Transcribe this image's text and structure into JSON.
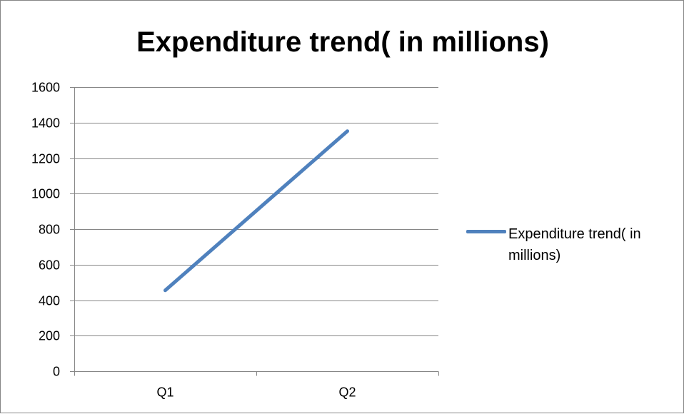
{
  "chart_data": {
    "type": "line",
    "title": "Expenditure trend( in millions)",
    "xlabel": "",
    "ylabel": "",
    "categories": [
      "Q1",
      "Q2"
    ],
    "series": [
      {
        "name": "Expenditure trend( in millions)",
        "values": [
          455,
          1352
        ],
        "color": "#4F81BD"
      }
    ],
    "ylim": [
      0,
      1600
    ],
    "yticks": [
      0,
      200,
      400,
      600,
      800,
      1000,
      1200,
      1400,
      1600
    ],
    "ytick_labels": [
      "0",
      "200",
      "400",
      "600",
      "800",
      "1000",
      "1200",
      "1400",
      "1600"
    ],
    "grid": true,
    "legend_position": "right"
  }
}
